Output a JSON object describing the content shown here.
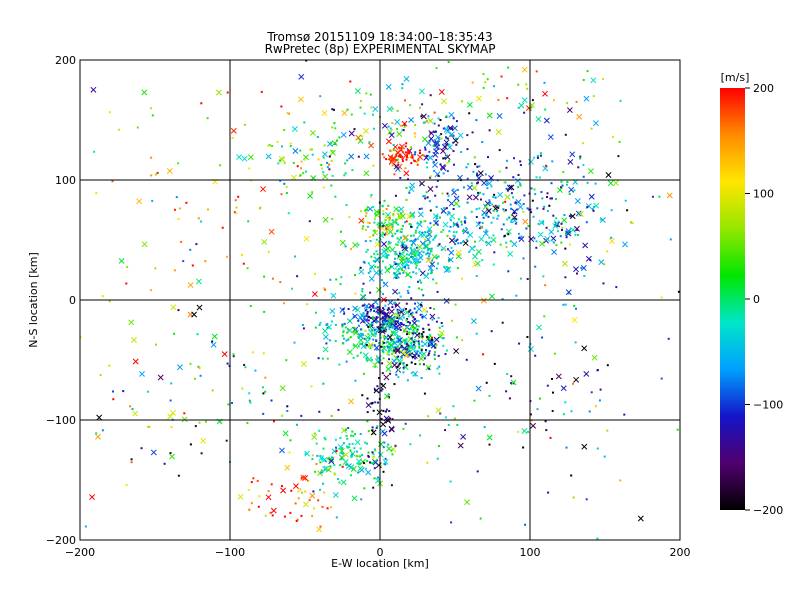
{
  "chart_data": {
    "type": "scatter",
    "title": "Tromsø 20151109 18:34:00–18:35:43",
    "subtitle": "RwPretec (8p) EXPERIMENTAL SKYMAP",
    "xlabel": "E-W location [km]",
    "ylabel": "N-S location [km]",
    "xlim": [
      -200,
      200
    ],
    "ylim": [
      -200,
      200
    ],
    "xticks": [
      -200,
      -100,
      0,
      100,
      200
    ],
    "yticks": [
      -200,
      -100,
      0,
      100,
      200
    ],
    "x_tick_labels": [
      "−200",
      "−100",
      "0",
      "100",
      "200"
    ],
    "y_tick_labels": [
      "−200",
      "−100",
      "0",
      "100",
      "200"
    ],
    "grid": true,
    "colorbar": {
      "label": "[m/s]",
      "range": [
        -200,
        200
      ],
      "ticks": [
        200,
        100,
        0,
        -100,
        -200
      ],
      "tick_labels": [
        "200",
        "100",
        "0",
        "−100",
        "−200"
      ],
      "colors": [
        "#000000",
        "#50006e",
        "#1414c8",
        "#00a0ff",
        "#00e6c8",
        "#00e600",
        "#96e600",
        "#ffe600",
        "#ff8c00",
        "#ff0000"
      ]
    },
    "markers": {
      "small": "dot",
      "large": "x"
    },
    "clusters": [
      {
        "x": 5,
        "y": -15,
        "sx": 14,
        "sy": 7,
        "n": 200,
        "v": -110,
        "vs": 40
      },
      {
        "x": 10,
        "y": -35,
        "sx": 16,
        "sy": 12,
        "n": 220,
        "v": -5,
        "vs": 40
      },
      {
        "x": -20,
        "y": -25,
        "sx": 12,
        "sy": 8,
        "n": 60,
        "v": -30,
        "vs": 50
      },
      {
        "x": 25,
        "y": -40,
        "sx": 12,
        "sy": 12,
        "n": 80,
        "v": -120,
        "vs": 50
      },
      {
        "x": 15,
        "y": 35,
        "sx": 15,
        "sy": 15,
        "n": 220,
        "v": -30,
        "vs": 40
      },
      {
        "x": 40,
        "y": 55,
        "sx": 15,
        "sy": 15,
        "n": 100,
        "v": -40,
        "vs": 40
      },
      {
        "x": 5,
        "y": 65,
        "sx": 12,
        "sy": 10,
        "n": 90,
        "v": 60,
        "vs": 60
      },
      {
        "x": 80,
        "y": 80,
        "sx": 30,
        "sy": 20,
        "n": 260,
        "v": -70,
        "vs": 60
      },
      {
        "x": 130,
        "y": 60,
        "sx": 20,
        "sy": 30,
        "n": 80,
        "v": -60,
        "vs": 70
      },
      {
        "x": 42,
        "y": 130,
        "sx": 7,
        "sy": 12,
        "n": 90,
        "v": -110,
        "vs": 50
      },
      {
        "x": 15,
        "y": 120,
        "sx": 6,
        "sy": 6,
        "n": 60,
        "v": 190,
        "vs": 15
      },
      {
        "x": 0,
        "y": 140,
        "sx": 25,
        "sy": 20,
        "n": 90,
        "v": 0,
        "vs": 90
      },
      {
        "x": -40,
        "y": 120,
        "sx": 20,
        "sy": 15,
        "n": 60,
        "v": 30,
        "vs": 70
      },
      {
        "x": -20,
        "y": -130,
        "sx": 15,
        "sy": 12,
        "n": 140,
        "v": -5,
        "vs": 45
      },
      {
        "x": -55,
        "y": -165,
        "sx": 15,
        "sy": 12,
        "n": 50,
        "v": 170,
        "vs": 50
      },
      {
        "x": 0,
        "y": -95,
        "sx": 6,
        "sy": 30,
        "n": 60,
        "v": -170,
        "vs": 40
      },
      {
        "x": 100,
        "y": 170,
        "sx": 30,
        "sy": 15,
        "n": 50,
        "v": 30,
        "vs": 100
      },
      {
        "x": -120,
        "y": 100,
        "sx": 40,
        "sy": 40,
        "n": 60,
        "v": 120,
        "vs": 80
      },
      {
        "x": -110,
        "y": -80,
        "sx": 50,
        "sy": 40,
        "n": 90,
        "v": 20,
        "vs": 120
      },
      {
        "x": 100,
        "y": -80,
        "sx": 40,
        "sy": 50,
        "n": 70,
        "v": -100,
        "vs": 110
      },
      {
        "x": 0,
        "y": 0,
        "sx": 110,
        "sy": 110,
        "n": 280,
        "v": 0,
        "vs": 130
      }
    ]
  }
}
